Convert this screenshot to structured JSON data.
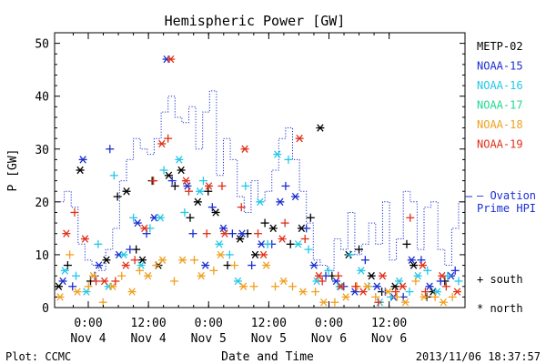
{
  "chart_data": {
    "type": "scatter",
    "title": "Hemispheric Power [GW]",
    "ylabel": "P [GW]",
    "xlabel": "Date and Time",
    "ylim": [
      0,
      52
    ],
    "yticks": [
      0,
      10,
      20,
      30,
      40,
      50
    ],
    "xlim_hours": [
      0,
      60
    ],
    "xticks": [
      {
        "time": "0:00",
        "date": "Nov 4"
      },
      {
        "time": "12:00",
        "date": "Nov 4"
      },
      {
        "time": "0:00",
        "date": "Nov 5"
      },
      {
        "time": "12:00",
        "date": "Nov 5"
      },
      {
        "time": "0:00",
        "date": "Nov 6"
      },
      {
        "time": "12:00",
        "date": "Nov 6"
      }
    ],
    "footer_left": "Plot: CCMC",
    "footer_right": "2013/11/06 18:37:57",
    "legend": {
      "placement": "right",
      "series_names": [
        "METP-02",
        "NOAA-15",
        "NOAA-16",
        "NOAA-17",
        "NOAA-18",
        "NOAA-19"
      ],
      "ovation_line1": "— Ovation",
      "ovation_line2": "Prime HPI",
      "south_label": "+ south",
      "north_label": "* north"
    },
    "colors": {
      "METP-02": "#000000",
      "NOAA-15": "#1a2fd0",
      "NOAA-16": "#22c8e8",
      "NOAA-17": "#22d890",
      "NOAA-18": "#f0a020",
      "NOAA-19": "#e03018",
      "ovation": "#1a2fd0"
    },
    "ovation": {
      "name": "Ovation Prime HPI",
      "x": [
        0,
        1,
        2,
        3,
        4,
        5,
        6,
        7,
        8,
        9,
        10,
        11,
        12,
        13,
        14,
        15,
        16,
        17,
        18,
        19,
        20,
        21,
        22,
        23,
        24,
        25,
        26,
        27,
        28,
        29,
        30,
        31,
        32,
        33,
        34,
        35,
        36,
        37,
        38,
        39,
        40,
        41,
        42,
        43,
        44,
        45,
        46,
        47,
        48,
        49,
        50,
        51,
        52,
        53,
        54,
        55,
        56,
        57,
        58
      ],
      "y": [
        20,
        22,
        19,
        12,
        9,
        8,
        7,
        11,
        15,
        24,
        28,
        32,
        30,
        29,
        32,
        37,
        40,
        36,
        35,
        38,
        30,
        37,
        41,
        25,
        32,
        28,
        21,
        18,
        24,
        20,
        22,
        26,
        32,
        34,
        28,
        22,
        16,
        9,
        8,
        7,
        13,
        11,
        18,
        10,
        12,
        16,
        12,
        20,
        9,
        13,
        22,
        20,
        11,
        19,
        20,
        11,
        8,
        15,
        20
      ]
    },
    "series": [
      {
        "name": "METP-02",
        "hemisphere": "north",
        "x": [
          0.2,
          3.3,
          7.1,
          10.0,
          12.3,
          14.6,
          16.1,
          17.9,
          20.3,
          22.9,
          26.4,
          28.6,
          31.2,
          35.3,
          38.0,
          42.1,
          45.4,
          48.8,
          51.5,
          54.3
        ],
        "y": [
          4,
          26,
          9,
          22,
          9,
          8,
          25,
          26,
          20,
          18,
          13,
          10,
          15,
          15,
          34,
          10,
          6,
          4,
          8,
          3
        ]
      },
      {
        "name": "METP-02",
        "hemisphere": "south",
        "x": [
          1.5,
          4.8,
          8.7,
          11.4,
          13.7,
          17.0,
          19.2,
          21.8,
          24.6,
          27.5,
          30.0,
          33.7,
          36.6,
          39.7,
          43.6,
          46.9,
          50.5,
          53.4,
          56.0
        ],
        "y": [
          8,
          5,
          21,
          11,
          24,
          23,
          17,
          22,
          8,
          14,
          16,
          12,
          17,
          6,
          11,
          3,
          12,
          2,
          5
        ]
      },
      {
        "name": "NOAA-15",
        "hemisphere": "north",
        "x": [
          0.8,
          3.7,
          6.0,
          8.9,
          11.6,
          14.0,
          15.8,
          18.8,
          21.4,
          24.0,
          26.7,
          29.5,
          32.2,
          34.4,
          37.1,
          40.3,
          43.0,
          46.2,
          48.6,
          51.2,
          53.8,
          56.9
        ],
        "y": [
          5,
          28,
          8,
          10,
          16,
          17,
          47,
          23,
          8,
          15,
          14,
          12,
          20,
          21,
          8,
          5,
          3,
          4,
          2,
          9,
          4,
          6
        ]
      },
      {
        "name": "NOAA-15",
        "hemisphere": "south",
        "x": [
          2.2,
          5.4,
          7.6,
          10.5,
          12.9,
          16.6,
          19.6,
          22.4,
          25.3,
          28.1,
          31.0,
          33.0,
          36.0,
          38.8,
          41.4,
          44.5,
          47.4,
          50.0,
          52.6,
          55.4,
          57.5
        ],
        "y": [
          4,
          6,
          30,
          11,
          14,
          24,
          14,
          19,
          14,
          8,
          12,
          23,
          15,
          6,
          4,
          9,
          3,
          2,
          9,
          5,
          7
        ]
      },
      {
        "name": "NOAA-16",
        "hemisphere": "north",
        "x": [
          1.1,
          4.2,
          7.4,
          9.6,
          12.1,
          14.9,
          17.6,
          20.6,
          23.4,
          26.1,
          29.3,
          31.8,
          34.8,
          37.5,
          40.8,
          43.9,
          46.6,
          49.4,
          52.1,
          54.9
        ],
        "y": [
          7,
          3,
          4,
          10,
          8,
          17,
          28,
          22,
          12,
          5,
          20,
          29,
          12,
          5,
          4,
          7,
          1,
          5,
          6,
          3
        ]
      },
      {
        "name": "NOAA-16",
        "hemisphere": "south",
        "x": [
          2.7,
          5.9,
          8.2,
          11.0,
          13.4,
          15.4,
          18.4,
          21.1,
          24.9,
          27.2,
          30.4,
          33.4,
          36.3,
          39.2,
          42.3,
          45.0,
          48.2,
          50.9,
          53.5,
          56.4,
          58.0
        ],
        "y": [
          6,
          12,
          25,
          17,
          15,
          26,
          18,
          24,
          10,
          23,
          12,
          28,
          11,
          7,
          10,
          4,
          2,
          3,
          7,
          6,
          5
        ]
      },
      {
        "name": "NOAA-18",
        "hemisphere": "north",
        "x": [
          0.4,
          2.9,
          5.2,
          8.0,
          10.8,
          13.1,
          15.2,
          18.1,
          20.8,
          23.6,
          26.9,
          30.2,
          32.7,
          35.5,
          38.5,
          41.7,
          44.8,
          47.8,
          50.3,
          53.0,
          55.8
        ],
        "y": [
          2,
          3,
          6,
          4,
          3,
          6,
          9,
          9,
          6,
          10,
          4,
          8,
          5,
          3,
          1,
          2,
          4,
          3,
          1,
          2,
          1
        ]
      },
      {
        "name": "NOAA-18",
        "hemisphere": "south",
        "x": [
          1.8,
          4.5,
          6.6,
          9.3,
          11.9,
          14.3,
          16.9,
          19.8,
          22.6,
          25.6,
          28.4,
          31.5,
          34.0,
          37.3,
          40.1,
          43.3,
          46.0,
          49.1,
          51.8,
          54.6,
          57.1
        ],
        "y": [
          10,
          4,
          1,
          6,
          7,
          8,
          5,
          9,
          7,
          8,
          4,
          4,
          4,
          3,
          1,
          4,
          2,
          2,
          5,
          2,
          2
        ]
      },
      {
        "name": "NOAA-19",
        "hemisphere": "north",
        "x": [
          1.3,
          4.0,
          6.8,
          9.9,
          12.6,
          15.1,
          16.4,
          18.6,
          21.9,
          24.2,
          27.1,
          29.8,
          32.5,
          35.0,
          37.8,
          41.0,
          44.2,
          47.0,
          49.9,
          52.8,
          55.6,
          57.8
        ],
        "y": [
          14,
          13,
          5,
          8,
          15,
          31,
          47,
          24,
          23,
          14,
          30,
          10,
          13,
          32,
          6,
          4,
          3,
          6,
          4,
          8,
          6,
          3
        ]
      },
      {
        "name": "NOAA-19",
        "hemisphere": "south",
        "x": [
          2.5,
          5.6,
          8.4,
          11.2,
          13.9,
          16.0,
          19.0,
          21.6,
          23.8,
          26.6,
          29.0,
          32.9,
          35.8,
          38.3,
          40.6,
          43.1,
          46.4,
          48.9,
          51.0,
          53.2,
          56.2
        ],
        "y": [
          18,
          5,
          5,
          9,
          24,
          32,
          22,
          14,
          23,
          19,
          14,
          16,
          13,
          5,
          6,
          4,
          1,
          3,
          17,
          3,
          4
        ]
      }
    ]
  }
}
